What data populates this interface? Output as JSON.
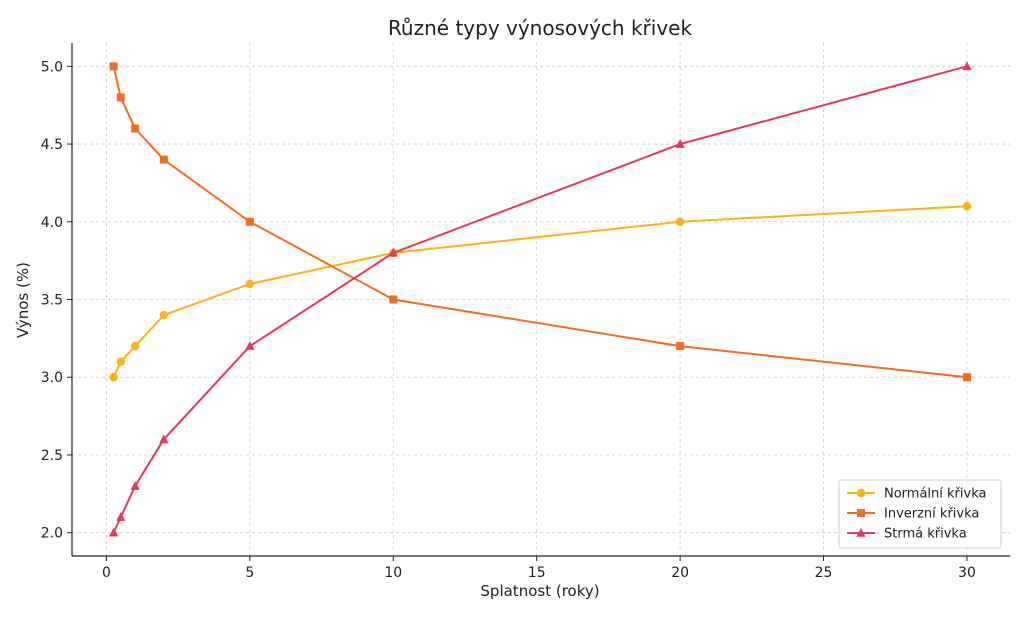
{
  "chart_data": {
    "type": "line",
    "title": "Různé typy výnosových křivek",
    "xlabel": "Splatnost (roky)",
    "ylabel": "Výnos (%)",
    "xlim": [
      -1.2,
      31.5
    ],
    "ylim": [
      1.85,
      5.15
    ],
    "xticks": [
      0,
      5,
      10,
      15,
      20,
      25,
      30
    ],
    "yticks": [
      2.0,
      2.5,
      3.0,
      3.5,
      4.0,
      4.5,
      5.0
    ],
    "grid": true,
    "legend_position": "bottom-right",
    "x": [
      0.25,
      0.5,
      1,
      2,
      5,
      10,
      20,
      30
    ],
    "series": [
      {
        "name": "Normální křivka",
        "color": "#fbb117",
        "marker": "circle",
        "values": [
          3.0,
          3.1,
          3.2,
          3.4,
          3.6,
          3.8,
          4.0,
          4.1
        ]
      },
      {
        "name": "Inverzní křivka",
        "color": "#f26d21",
        "marker": "square",
        "values": [
          5.0,
          4.8,
          4.6,
          4.4,
          4.0,
          3.5,
          3.2,
          3.0
        ]
      },
      {
        "name": "Strmá křivka",
        "color": "#e8365d",
        "marker": "triangle",
        "values": [
          2.0,
          2.1,
          2.3,
          2.6,
          3.2,
          3.8,
          4.5,
          5.0
        ]
      }
    ]
  }
}
